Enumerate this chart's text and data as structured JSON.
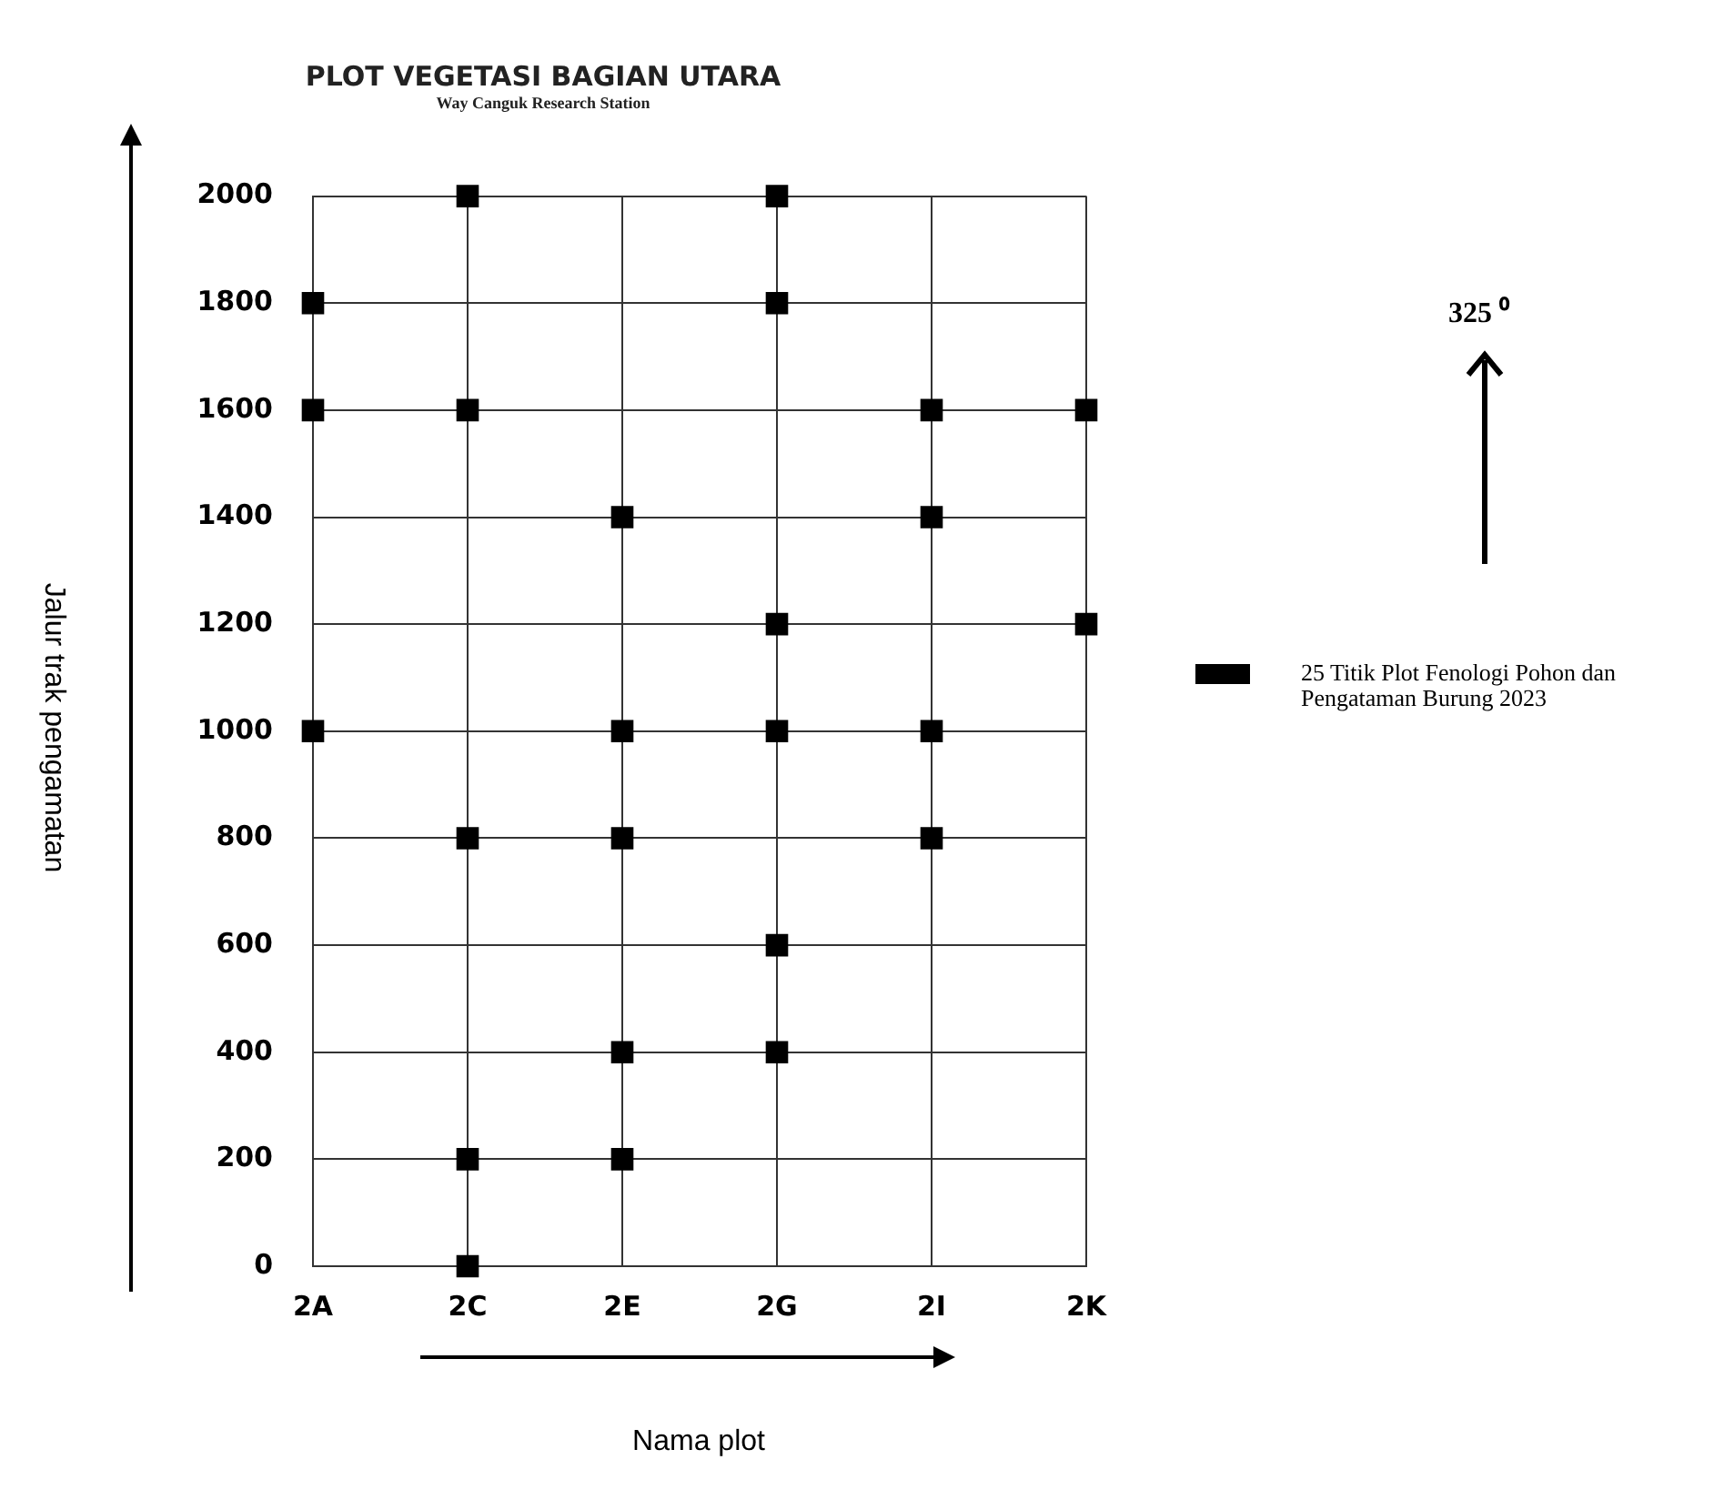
{
  "chart_data": {
    "type": "scatter",
    "title": "PLOT VEGETASI BAGIAN UTARA",
    "subtitle": "Way Canguk Research Station",
    "xlabel": "Nama plot",
    "ylabel": "Jalur trak pengamatan",
    "annotations": [
      "325 ⁰"
    ],
    "categories": [
      "2A",
      "2C",
      "2E",
      "2G",
      "2I",
      "2K"
    ],
    "ylim": [
      0,
      2000
    ],
    "yticks": [
      0,
      200,
      400,
      600,
      800,
      1000,
      1200,
      1400,
      1600,
      1800,
      2000
    ],
    "grid": true,
    "legend": "right",
    "marker": "square",
    "series": [
      {
        "name": "25 Titik Plot Fenologi Pohon dan Pengataman Burung 2023",
        "color": "#000000",
        "x": [
          "2C",
          "2G",
          "2A",
          "2G",
          "2A",
          "2C",
          "2I",
          "2K",
          "2E",
          "2I",
          "2G",
          "2K",
          "2A",
          "2E",
          "2G",
          "2I",
          "2C",
          "2E",
          "2I",
          "2G",
          "2E",
          "2G",
          "2C",
          "2E",
          "2C"
        ],
        "values": [
          2000,
          2000,
          1800,
          1800,
          1600,
          1600,
          1600,
          1600,
          1400,
          1400,
          1200,
          1200,
          1000,
          1000,
          1000,
          1000,
          800,
          800,
          800,
          600,
          400,
          400,
          200,
          200,
          0
        ]
      }
    ]
  }
}
